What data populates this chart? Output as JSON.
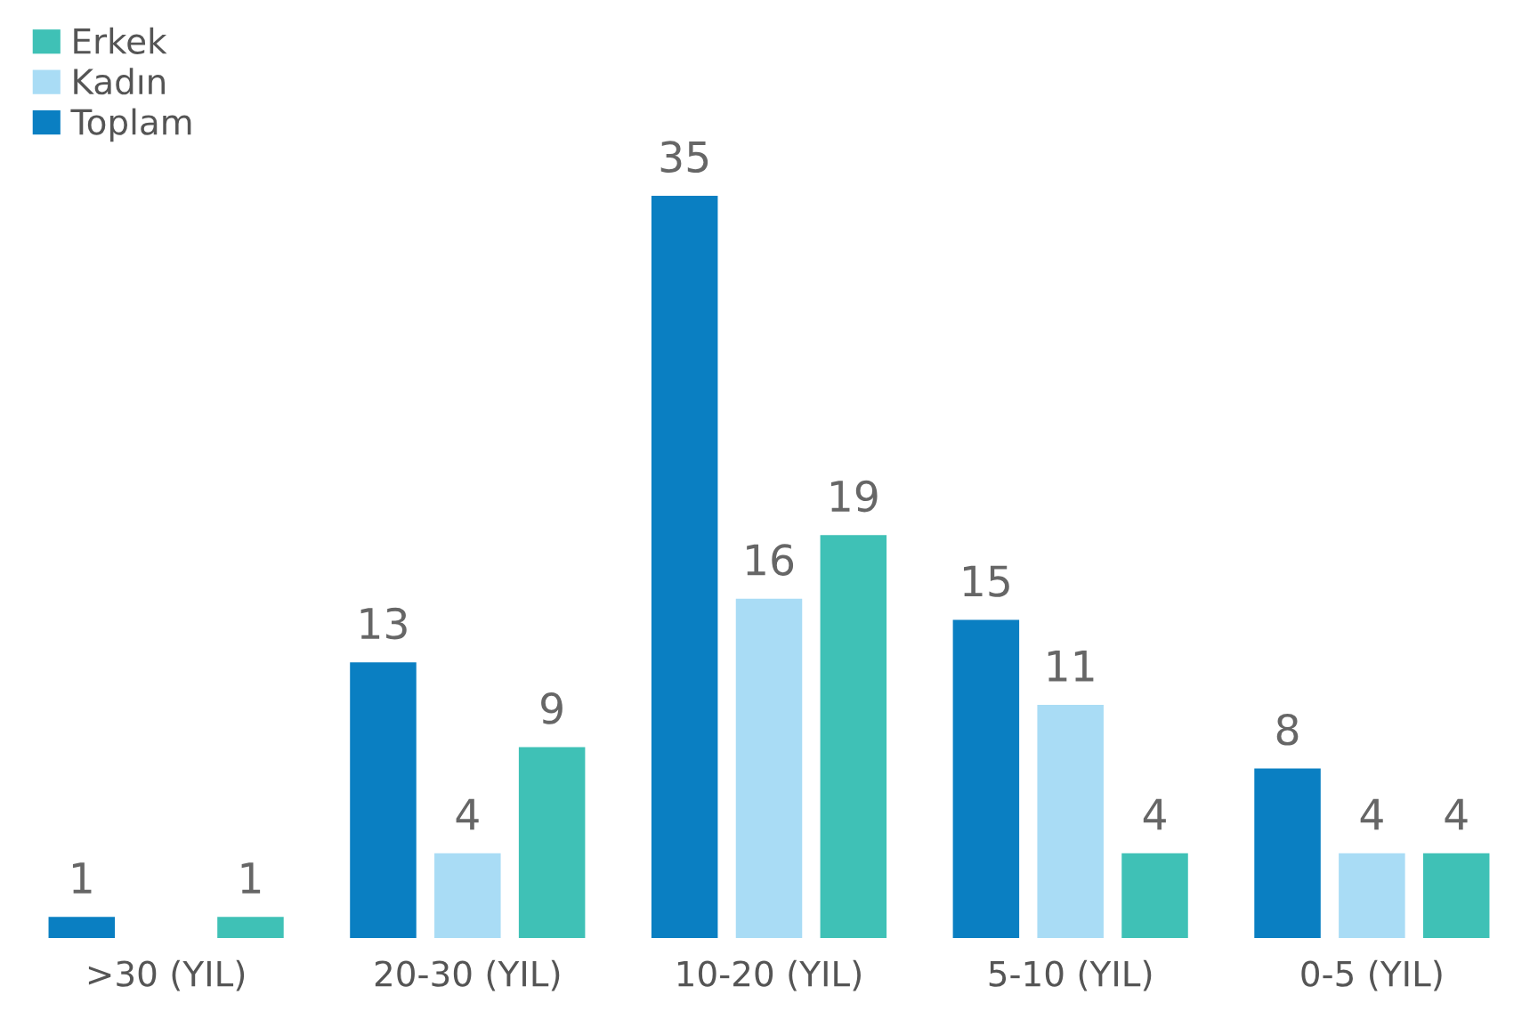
{
  "chart_data": {
    "type": "bar",
    "categories": [
      ">30 (YIL)",
      "20-30 (YIL)",
      "10-20 (YIL)",
      "5-10 (YIL)",
      "0-5 (YIL)"
    ],
    "series": [
      {
        "name": "Toplam",
        "color": "#0a7fc2",
        "values": [
          1,
          13,
          35,
          15,
          8
        ]
      },
      {
        "name": "Kadın",
        "color": "#a9dcf5",
        "values": [
          null,
          4,
          16,
          11,
          4
        ]
      },
      {
        "name": "Erkek",
        "color": "#3fc1b6",
        "values": [
          1,
          9,
          19,
          4,
          4
        ]
      }
    ],
    "data_labels": true,
    "legend": "top left",
    "grid": false
  }
}
